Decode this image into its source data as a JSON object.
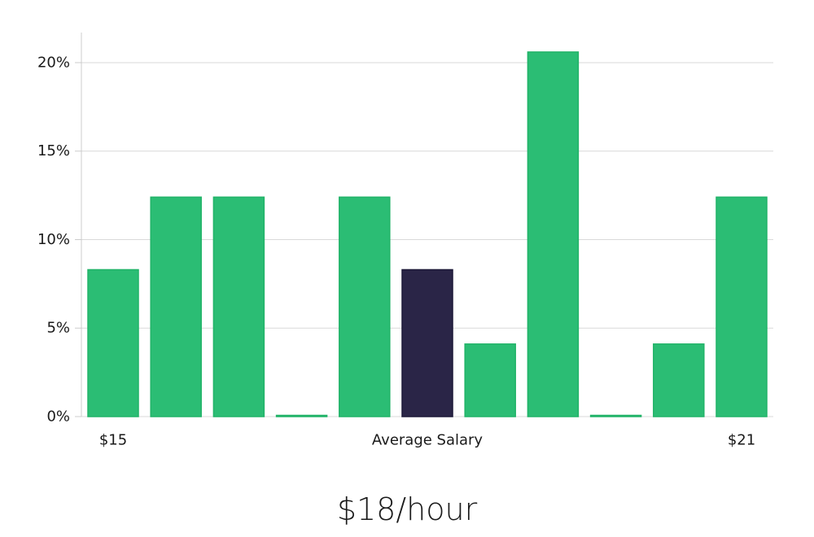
{
  "headline": "$18/hour",
  "colors": {
    "bar": "#2bbd74",
    "bar_stroke": "#21b368",
    "highlight": "#2a2547",
    "grid": "#d9d9d9",
    "axis": "#cccccc"
  },
  "chart_data": {
    "type": "bar",
    "title": "",
    "xlabel": "",
    "ylabel": "",
    "ylim": [
      0,
      21.7
    ],
    "yticks": [
      0,
      5,
      10,
      15,
      20
    ],
    "ytick_labels": [
      "0%",
      "5%",
      "10%",
      "15%",
      "20%"
    ],
    "grid": true,
    "values": [
      8.3,
      12.4,
      12.4,
      0,
      12.4,
      8.3,
      4.1,
      20.6,
      0,
      4.1,
      12.4
    ],
    "highlight_index": 5,
    "x_labels": [
      {
        "index": 0,
        "text": "$15"
      },
      {
        "index": 5,
        "text": "Average Salary"
      },
      {
        "index": 10,
        "text": "$21"
      }
    ]
  }
}
